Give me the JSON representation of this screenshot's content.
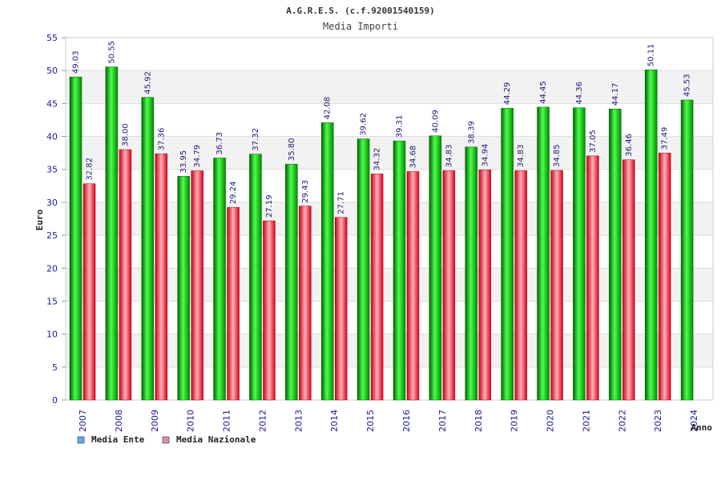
{
  "chart_data": {
    "type": "bar",
    "title": "A.G.R.E.S. (c.f.92001540159)",
    "subtitle": "Media Importi",
    "ylabel": "Euro",
    "xlabel": "Anno",
    "ylim": [
      0,
      55
    ],
    "yticks": [
      "0",
      "5",
      "10",
      "15",
      "20",
      "25",
      "30",
      "35",
      "40",
      "45",
      "50",
      "55"
    ],
    "categories": [
      "2007",
      "2008",
      "2009",
      "2010",
      "2011",
      "2012",
      "2013",
      "2014",
      "2015",
      "2016",
      "2017",
      "2018",
      "2019",
      "2020",
      "2021",
      "2022",
      "2023",
      "2024"
    ],
    "series": [
      {
        "name": "Media Ente",
        "color": "#00a000",
        "legend_color": "#6aa8f0",
        "values": [
          49.03,
          50.55,
          45.92,
          33.95,
          36.73,
          37.32,
          35.8,
          42.08,
          39.62,
          39.31,
          40.09,
          38.39,
          44.29,
          44.45,
          44.36,
          44.17,
          50.11,
          45.53
        ],
        "labels": [
          "49.03",
          "50.55",
          "45.92",
          "33.95",
          "36.73",
          "37.32",
          "35.80",
          "42.08",
          "39.62",
          "39.31",
          "40.09",
          "38.39",
          "44.29",
          "44.45",
          "44.36",
          "44.17",
          "50.11",
          "45.53"
        ]
      },
      {
        "name": "Media Nazionale",
        "color": "#e8001c",
        "legend_color": "#e58ab0",
        "values": [
          32.82,
          38.0,
          37.36,
          34.79,
          29.24,
          27.19,
          29.43,
          27.71,
          34.32,
          34.68,
          34.83,
          34.94,
          34.83,
          34.85,
          37.05,
          36.46,
          37.49,
          null
        ],
        "labels": [
          "32.82",
          "38.00",
          "37.36",
          "34.79",
          "29.24",
          "27.19",
          "29.43",
          "27.71",
          "34.32",
          "34.68",
          "34.83",
          "34.94",
          "34.83",
          "34.85",
          "37.05",
          "36.46",
          "37.49",
          ""
        ]
      }
    ],
    "grid": true,
    "legend_position": "bottom-left"
  }
}
